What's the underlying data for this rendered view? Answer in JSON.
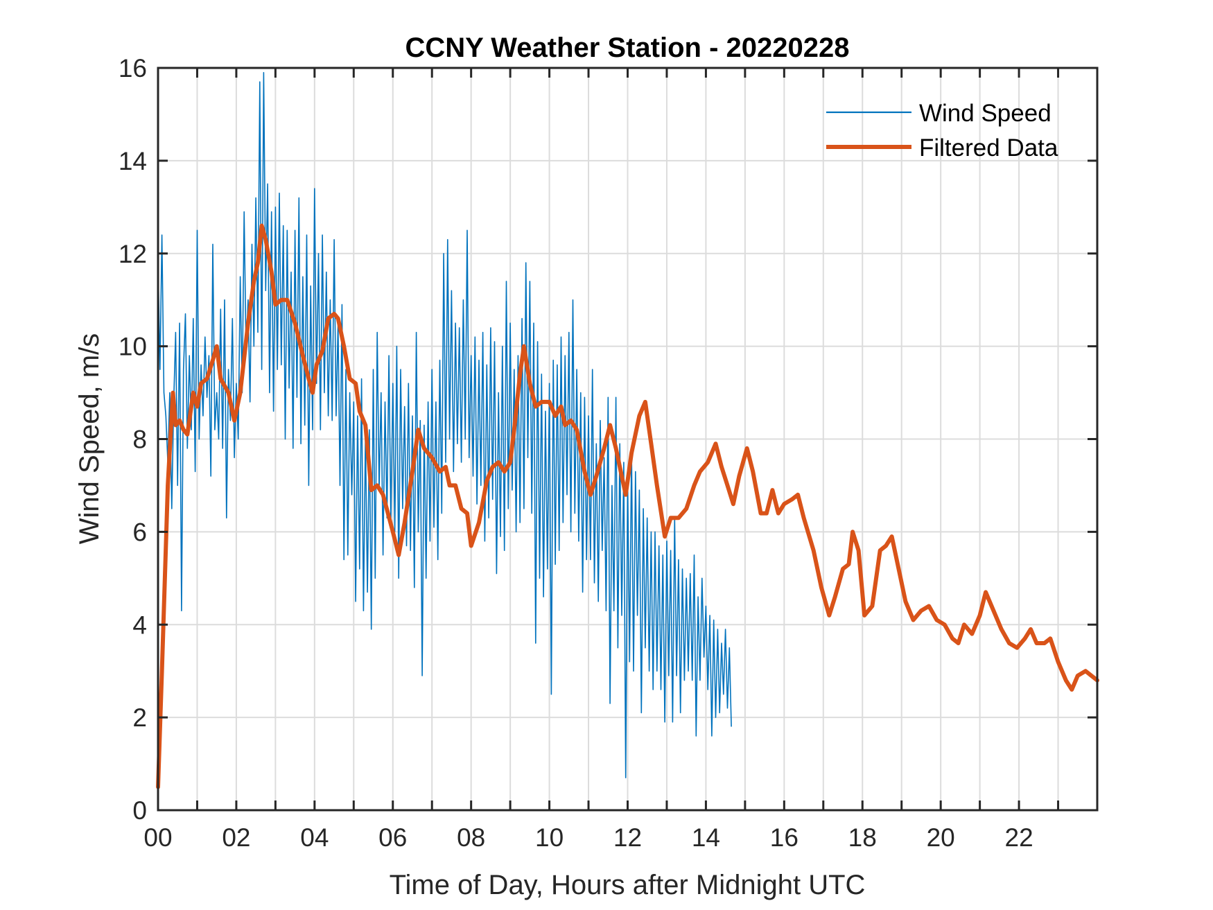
{
  "chart_data": {
    "type": "line",
    "title": "CCNY Weather Station - 20220228",
    "xlabel": "Time of Day, Hours after Midnight UTC",
    "ylabel": "Wind Speed, m/s",
    "xlim": [
      0,
      24
    ],
    "ylim": [
      0,
      16
    ],
    "xticks": [
      0,
      2,
      4,
      6,
      8,
      10,
      12,
      14,
      16,
      18,
      20,
      22
    ],
    "xtick_labels": [
      "00",
      "02",
      "04",
      "06",
      "08",
      "10",
      "12",
      "14",
      "16",
      "18",
      "20",
      "22"
    ],
    "minor_xticks_every_hours": 1,
    "yticks": [
      0,
      2,
      4,
      6,
      8,
      10,
      12,
      14,
      16
    ],
    "ytick_labels": [
      "0",
      "2",
      "4",
      "6",
      "8",
      "10",
      "12",
      "14",
      "16"
    ],
    "grid": true,
    "legend_position": "top-right",
    "series": [
      {
        "name": "Wind Speed",
        "color": "#0072BD",
        "x_start": 0,
        "x_step": 0.05,
        "values": [
          11.8,
          9.5,
          12.4,
          9.0,
          8.5,
          7.5,
          9.0,
          6.5,
          8.8,
          10.3,
          7.0,
          10.5,
          4.3,
          9.5,
          10.7,
          7.8,
          9.8,
          8.2,
          10.6,
          7.3,
          12.5,
          8.0,
          9.6,
          8.5,
          10.2,
          8.9,
          9.8,
          7.2,
          12.2,
          8.2,
          9.0,
          8.0,
          10.8,
          7.8,
          11.0,
          6.3,
          9.5,
          8.4,
          10.6,
          7.6,
          9.2,
          8.0,
          11.5,
          9.0,
          12.9,
          9.9,
          11.0,
          8.8,
          12.2,
          10.0,
          13.2,
          10.3,
          15.7,
          9.5,
          15.9,
          11.2,
          13.5,
          9.0,
          12.9,
          8.6,
          13.0,
          9.5,
          13.3,
          9.6,
          12.6,
          8.0,
          12.5,
          9.1,
          11.6,
          7.8,
          12.5,
          8.9,
          13.2,
          7.9,
          11.5,
          8.3,
          12.4,
          7.0,
          11.3,
          8.2,
          13.4,
          9.2,
          12.0,
          8.2,
          12.4,
          9.0,
          11.6,
          8.5,
          11.0,
          8.4,
          12.3,
          8.5,
          10.5,
          7.0,
          10.9,
          5.4,
          9.5,
          5.5,
          9.0,
          6.8,
          8.8,
          4.5,
          8.5,
          5.2,
          9.3,
          4.3,
          8.1,
          4.7,
          8.2,
          3.9,
          9.5,
          5.0,
          10.3,
          6.9,
          9.0,
          5.5,
          8.8,
          6.3,
          9.8,
          6.2,
          9.2,
          6.0,
          10.0,
          5.0,
          9.5,
          6.5,
          8.7,
          5.7,
          9.2,
          5.6,
          8.5,
          4.8,
          10.3,
          6.0,
          8.4,
          2.9,
          8.3,
          5.0,
          8.8,
          5.8,
          9.5,
          6.1,
          8.8,
          5.4,
          9.7,
          6.4,
          12.0,
          7.5,
          12.3,
          8.0,
          11.2,
          7.3,
          10.5,
          7.9,
          10.4,
          7.5,
          11.0,
          8.0,
          12.5,
          7.6,
          9.8,
          7.2,
          10.2,
          6.6,
          9.7,
          7.0,
          10.3,
          5.8,
          9.6,
          6.3,
          10.4,
          6.7,
          10.1,
          5.1,
          9.0,
          5.9,
          10.0,
          5.6,
          11.4,
          6.5,
          10.5,
          6.9,
          9.5,
          6.0,
          9.8,
          6.2,
          10.6,
          6.5,
          11.8,
          7.6,
          11.4,
          6.4,
          10.5,
          3.6,
          10.1,
          5.0,
          9.4,
          4.6,
          8.6,
          5.2,
          9.2,
          2.5,
          9.7,
          5.3,
          9.6,
          5.6,
          10.2,
          6.2,
          9.8,
          6.8,
          10.3,
          6.0,
          11.0,
          6.4,
          9.5,
          5.8,
          9.0,
          4.7,
          8.9,
          5.4,
          8.5,
          5.4,
          9.5,
          4.9,
          7.9,
          4.5,
          8.4,
          5.6,
          7.6,
          4.3,
          8.9,
          2.3,
          7.0,
          4.3,
          8.9,
          3.5,
          7.9,
          4.2,
          7.5,
          0.7,
          7.2,
          3.2,
          7.8,
          3.0,
          7.3,
          4.2,
          6.9,
          2.1,
          6.5,
          3.5,
          6.3,
          3.0,
          6.0,
          2.6,
          6.0,
          3.0,
          5.7,
          2.6,
          5.5,
          1.9,
          5.8,
          2.9,
          5.6,
          1.9,
          6.3,
          2.9,
          5.4,
          2.1,
          5.2,
          2.8,
          5.0,
          3.0,
          5.1,
          2.8,
          5.5,
          1.6,
          4.6,
          2.8,
          5.0,
          3.3,
          4.4,
          2.6,
          4.2,
          1.6,
          4.1,
          2.0,
          3.9,
          2.1,
          3.6,
          2.5,
          3.9,
          2.2,
          3.5,
          1.8
        ]
      },
      {
        "name": "Filtered Data",
        "color": "#D95319",
        "points": [
          [
            0.0,
            0.5
          ],
          [
            0.1,
            3.0
          ],
          [
            0.25,
            7.0
          ],
          [
            0.38,
            9.0
          ],
          [
            0.45,
            8.3
          ],
          [
            0.55,
            8.4
          ],
          [
            0.65,
            8.2
          ],
          [
            0.75,
            8.1
          ],
          [
            0.9,
            9.0
          ],
          [
            1.0,
            8.7
          ],
          [
            1.1,
            9.2
          ],
          [
            1.25,
            9.3
          ],
          [
            1.4,
            9.7
          ],
          [
            1.5,
            10.0
          ],
          [
            1.6,
            9.3
          ],
          [
            1.8,
            9.0
          ],
          [
            1.95,
            8.4
          ],
          [
            2.1,
            9.0
          ],
          [
            2.3,
            10.5
          ],
          [
            2.45,
            11.4
          ],
          [
            2.55,
            11.8
          ],
          [
            2.65,
            12.6
          ],
          [
            2.75,
            12.3
          ],
          [
            2.9,
            11.6
          ],
          [
            3.0,
            10.9
          ],
          [
            3.15,
            11.0
          ],
          [
            3.3,
            11.0
          ],
          [
            3.5,
            10.5
          ],
          [
            3.7,
            9.8
          ],
          [
            3.85,
            9.3
          ],
          [
            3.95,
            9.0
          ],
          [
            4.05,
            9.6
          ],
          [
            4.2,
            9.9
          ],
          [
            4.35,
            10.6
          ],
          [
            4.5,
            10.7
          ],
          [
            4.6,
            10.6
          ],
          [
            4.75,
            10.0
          ],
          [
            4.9,
            9.3
          ],
          [
            5.05,
            9.2
          ],
          [
            5.15,
            8.6
          ],
          [
            5.3,
            8.3
          ],
          [
            5.45,
            6.9
          ],
          [
            5.6,
            7.0
          ],
          [
            5.75,
            6.8
          ],
          [
            6.0,
            6.0
          ],
          [
            6.15,
            5.5
          ],
          [
            6.3,
            6.2
          ],
          [
            6.5,
            7.3
          ],
          [
            6.65,
            8.2
          ],
          [
            6.8,
            7.8
          ],
          [
            7.0,
            7.6
          ],
          [
            7.2,
            7.3
          ],
          [
            7.35,
            7.4
          ],
          [
            7.45,
            7.0
          ],
          [
            7.6,
            7.0
          ],
          [
            7.75,
            6.5
          ],
          [
            7.9,
            6.4
          ],
          [
            8.0,
            5.7
          ],
          [
            8.2,
            6.2
          ],
          [
            8.4,
            7.1
          ],
          [
            8.55,
            7.4
          ],
          [
            8.7,
            7.5
          ],
          [
            8.85,
            7.3
          ],
          [
            9.0,
            7.5
          ],
          [
            9.1,
            8.2
          ],
          [
            9.25,
            9.4
          ],
          [
            9.35,
            10.0
          ],
          [
            9.5,
            9.2
          ],
          [
            9.65,
            8.7
          ],
          [
            9.8,
            8.8
          ],
          [
            10.0,
            8.8
          ],
          [
            10.15,
            8.5
          ],
          [
            10.3,
            8.7
          ],
          [
            10.4,
            8.3
          ],
          [
            10.55,
            8.4
          ],
          [
            10.7,
            8.2
          ],
          [
            10.9,
            7.3
          ],
          [
            11.05,
            6.8
          ],
          [
            11.2,
            7.2
          ],
          [
            11.4,
            7.8
          ],
          [
            11.55,
            8.3
          ],
          [
            11.7,
            7.8
          ],
          [
            11.85,
            7.2
          ],
          [
            11.95,
            6.8
          ],
          [
            12.1,
            7.7
          ],
          [
            12.3,
            8.5
          ],
          [
            12.45,
            8.8
          ],
          [
            12.6,
            7.9
          ],
          [
            12.75,
            7.0
          ],
          [
            12.95,
            5.9
          ],
          [
            13.1,
            6.3
          ],
          [
            13.3,
            6.3
          ],
          [
            13.5,
            6.5
          ],
          [
            13.7,
            7.0
          ],
          [
            13.85,
            7.3
          ],
          [
            14.05,
            7.5
          ],
          [
            14.25,
            7.9
          ],
          [
            14.4,
            7.4
          ],
          [
            14.55,
            7.0
          ],
          [
            14.7,
            6.6
          ],
          [
            14.85,
            7.2
          ],
          [
            15.05,
            7.8
          ],
          [
            15.2,
            7.3
          ],
          [
            15.4,
            6.4
          ],
          [
            15.55,
            6.4
          ],
          [
            15.7,
            6.9
          ],
          [
            15.85,
            6.4
          ],
          [
            16.0,
            6.6
          ],
          [
            16.2,
            6.7
          ],
          [
            16.35,
            6.8
          ],
          [
            16.5,
            6.3
          ],
          [
            16.75,
            5.6
          ],
          [
            16.95,
            4.8
          ],
          [
            17.15,
            4.2
          ],
          [
            17.3,
            4.6
          ],
          [
            17.5,
            5.2
          ],
          [
            17.65,
            5.3
          ],
          [
            17.75,
            6.0
          ],
          [
            17.9,
            5.6
          ],
          [
            18.05,
            4.2
          ],
          [
            18.25,
            4.4
          ],
          [
            18.45,
            5.6
          ],
          [
            18.6,
            5.7
          ],
          [
            18.75,
            5.9
          ],
          [
            18.9,
            5.3
          ],
          [
            19.1,
            4.5
          ],
          [
            19.3,
            4.1
          ],
          [
            19.5,
            4.3
          ],
          [
            19.7,
            4.4
          ],
          [
            19.9,
            4.1
          ],
          [
            20.1,
            4.0
          ],
          [
            20.3,
            3.7
          ],
          [
            20.45,
            3.6
          ],
          [
            20.6,
            4.0
          ],
          [
            20.8,
            3.8
          ],
          [
            21.0,
            4.2
          ],
          [
            21.15,
            4.7
          ],
          [
            21.35,
            4.3
          ],
          [
            21.55,
            3.9
          ],
          [
            21.75,
            3.6
          ],
          [
            21.95,
            3.5
          ],
          [
            22.15,
            3.7
          ],
          [
            22.3,
            3.9
          ],
          [
            22.45,
            3.6
          ],
          [
            22.65,
            3.6
          ],
          [
            22.8,
            3.7
          ],
          [
            23.0,
            3.2
          ],
          [
            23.2,
            2.8
          ],
          [
            23.35,
            2.6
          ],
          [
            23.5,
            2.9
          ],
          [
            23.7,
            3.0
          ],
          [
            23.85,
            2.9
          ],
          [
            24.0,
            2.8
          ]
        ]
      }
    ]
  }
}
